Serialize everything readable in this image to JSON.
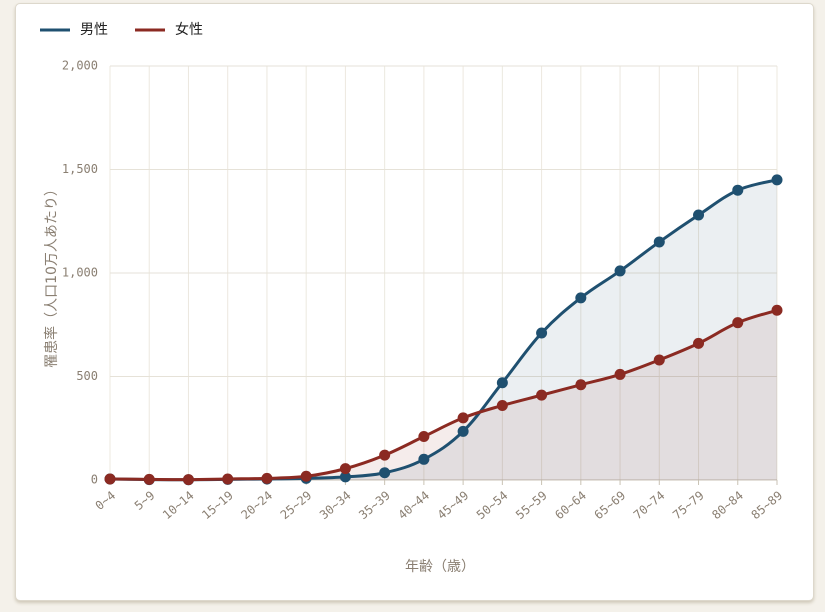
{
  "chart_data": {
    "type": "line",
    "x_label": "年齢（歳）",
    "y_label": "罹患率（人口10万人あたり）",
    "categories": [
      "0~4",
      "5~9",
      "10~14",
      "15~19",
      "20~24",
      "25~29",
      "30~34",
      "35~39",
      "40~44",
      "45~49",
      "50~54",
      "55~59",
      "60~64",
      "65~69",
      "70~74",
      "75~79",
      "80~84",
      "85~89"
    ],
    "series": [
      {
        "name": "男性",
        "color": "#1f5070",
        "values": [
          5,
          2,
          1,
          3,
          5,
          8,
          15,
          35,
          100,
          235,
          470,
          710,
          880,
          1010,
          1150,
          1280,
          1400,
          1450
        ]
      },
      {
        "name": "女性",
        "color": "#8b2a22",
        "values": [
          5,
          3,
          2,
          5,
          8,
          18,
          55,
          120,
          210,
          300,
          360,
          410,
          460,
          510,
          580,
          660,
          760,
          820
        ]
      }
    ],
    "ylim": [
      0,
      2000
    ],
    "yticks": [
      0,
      500,
      {
        "value": 1000,
        "label": "1,000"
      },
      {
        "value": 1500,
        "label": "1,500"
      },
      {
        "value": 2000,
        "label": "2,000"
      }
    ],
    "grid": true
  }
}
